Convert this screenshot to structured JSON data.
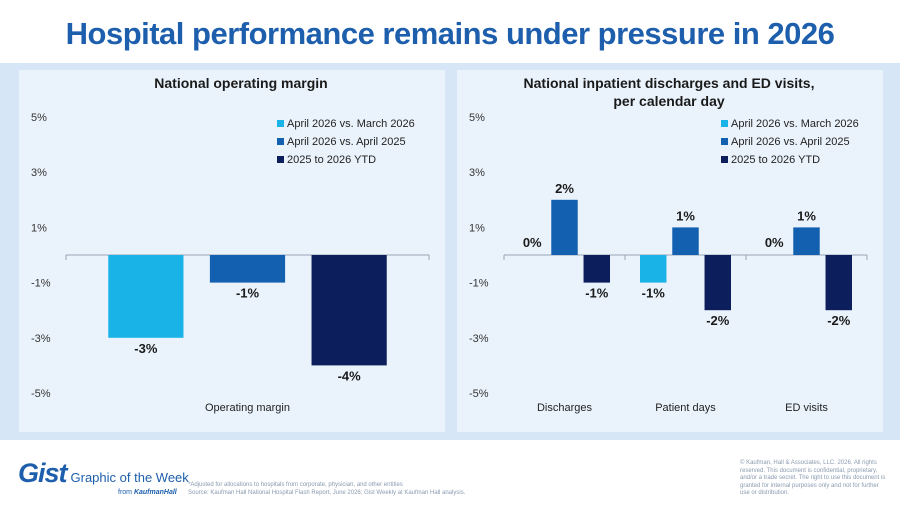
{
  "title": "Hospital performance remains under pressure in 2026",
  "colors": {
    "light": "#1ab3e8",
    "mid": "#1460b0",
    "dark": "#0d1e5c",
    "title": "#1d5fac"
  },
  "legend": [
    "April 2026 vs. March 2026",
    "April 2026 vs. April 2025",
    "2025 to 2026 YTD"
  ],
  "chart_data": [
    {
      "type": "bar",
      "title": "National operating margin",
      "title_line2": "",
      "categories": [
        "Operating margin"
      ],
      "ylim": [
        -5,
        5
      ],
      "yticks": [
        5,
        3,
        1,
        -1,
        -3,
        -5
      ],
      "ytick_labels": [
        "5%",
        "3%",
        "1%",
        "-1%",
        "-3%",
        "-5%"
      ],
      "series": [
        {
          "name": "April 2026 vs. March 2026",
          "values": [
            -3
          ],
          "labels": [
            "-3%"
          ]
        },
        {
          "name": "April 2026 vs. April 2025",
          "values": [
            -1
          ],
          "labels": [
            "-1%"
          ]
        },
        {
          "name": "2025 to 2026 YTD",
          "values": [
            -4
          ],
          "labels": [
            "-4%"
          ]
        }
      ],
      "legend_position": "top-right",
      "grid": false
    },
    {
      "type": "bar",
      "title": "National inpatient discharges and ED visits,",
      "title_line2": "per calendar day",
      "categories": [
        "Discharges",
        "Patient days",
        "ED visits"
      ],
      "ylim": [
        -5,
        5
      ],
      "yticks": [
        5,
        3,
        1,
        -1,
        -3,
        -5
      ],
      "ytick_labels": [
        "5%",
        "3%",
        "1%",
        "-1%",
        "-3%",
        "-5%"
      ],
      "series": [
        {
          "name": "April 2026 vs. March 2026",
          "values": [
            0,
            -1,
            0
          ],
          "labels": [
            "0%",
            "-1%",
            "0%"
          ]
        },
        {
          "name": "April 2026 vs. April 2025",
          "values": [
            2,
            1,
            1
          ],
          "labels": [
            "2%",
            "1%",
            "1%"
          ]
        },
        {
          "name": "2025 to 2026 YTD",
          "values": [
            -1,
            -2,
            -2
          ],
          "labels": [
            "-1%",
            "-2%",
            "-2%"
          ]
        }
      ],
      "legend_position": "top-right",
      "grid": false
    }
  ],
  "footer": {
    "brand": "Gist",
    "tagline": "Graphic of the Week",
    "from_text": "from",
    "from_brand": "KaufmanHall",
    "footnote_line1": "*Adjusted for allocations to hospitals from corporate, physician, and other entities",
    "footnote_line2": "Source: Kaufman Hall National Hospital Flash Report, June 2026; Gist Weekly at Kaufman Hall analysis.",
    "copyright": "© Kaufman, Hall & Associates, LLC. 2026. All rights reserved. This document is confidential, proprietary, and/or a trade secret. The right to use this document is granted for internal purposes only and not for further use or distribution."
  }
}
